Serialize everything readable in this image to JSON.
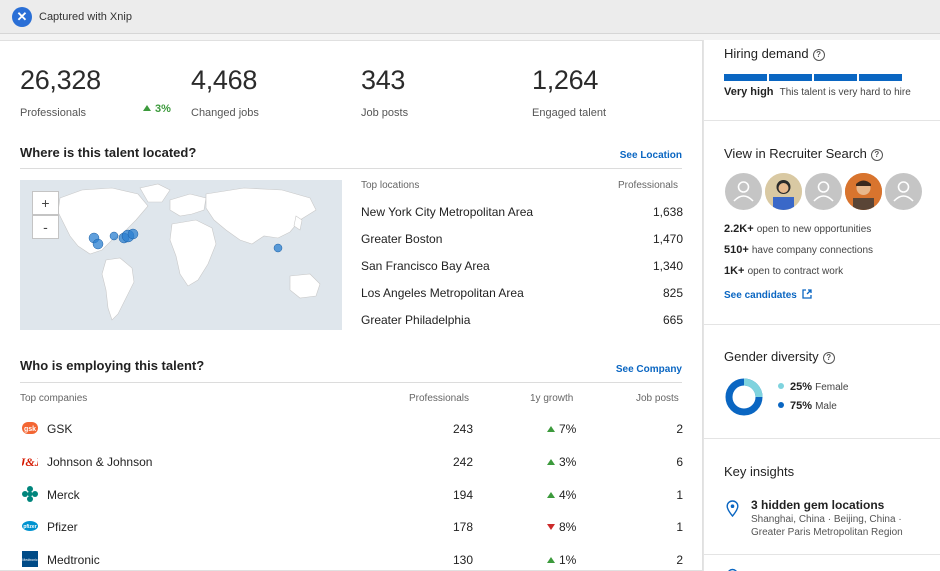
{
  "titlebar": {
    "title": "Captured with Xnip",
    "logo_glyph": "✕"
  },
  "stats": [
    {
      "value": "26,328",
      "label": "Professionals"
    },
    {
      "value": "4,468",
      "label": "Changed jobs"
    },
    {
      "value": "343",
      "label": "Job posts"
    },
    {
      "value": "1,264",
      "label": "Engaged talent"
    }
  ],
  "stats_growth": "3%",
  "location": {
    "title": "Where is this talent located?",
    "link": "See Location",
    "zoom_in": "+",
    "zoom_out": "-",
    "col_name": "Top locations",
    "col_value": "Professionals",
    "rows": [
      {
        "name": "New York City Metropolitan Area",
        "value": "1,638"
      },
      {
        "name": "Greater Boston",
        "value": "1,470"
      },
      {
        "name": "San Francisco Bay Area",
        "value": "1,340"
      },
      {
        "name": "Los Angeles Metropolitan Area",
        "value": "825"
      },
      {
        "name": "Greater Philadelphia",
        "value": "665"
      }
    ]
  },
  "companies": {
    "title": "Who is employing this talent?",
    "link": "See Company",
    "headers": {
      "name": "Top companies",
      "professionals": "Professionals",
      "growth": "1y growth",
      "jobs": "Job posts"
    },
    "rows": [
      {
        "name": "GSK",
        "professionals": "243",
        "growth": "7%",
        "direction": "up",
        "jobs": "2",
        "logo": "gsk-logo-icon",
        "color": "#f36633"
      },
      {
        "name": "Johnson & Johnson",
        "professionals": "242",
        "growth": "3%",
        "direction": "up",
        "jobs": "6",
        "logo": "jnj-logo-icon",
        "color": "#d51900"
      },
      {
        "name": "Merck",
        "professionals": "194",
        "growth": "4%",
        "direction": "up",
        "jobs": "1",
        "logo": "merck-logo-icon",
        "color": "#00857c"
      },
      {
        "name": "Pfizer",
        "professionals": "178",
        "growth": "8%",
        "direction": "down",
        "jobs": "1",
        "logo": "pfizer-logo-icon",
        "color": "#0093d0"
      },
      {
        "name": "Medtronic",
        "professionals": "130",
        "growth": "1%",
        "direction": "up",
        "jobs": "2",
        "logo": "medtronic-logo-icon",
        "color": "#004b87"
      }
    ]
  },
  "hiring_demand": {
    "title": "Hiring demand",
    "level": "Very high",
    "description": "This talent is very hard to hire",
    "segments_filled": 4
  },
  "recruiter_search": {
    "title": "View in Recruiter Search",
    "avatars": [
      "placeholder",
      "photo",
      "placeholder",
      "photo",
      "placeholder"
    ],
    "stats": [
      {
        "value": "2.2K+",
        "text": "open to new opportunities"
      },
      {
        "value": "510+",
        "text": "have company connections"
      },
      {
        "value": "1K+",
        "text": "open to contract work"
      }
    ],
    "link": "See candidates"
  },
  "gender": {
    "title": "Gender diversity",
    "female_pct": "25%",
    "female_label": "Female",
    "male_pct": "75%",
    "male_label": "Male",
    "female_color": "#7fd3de",
    "male_color": "#0a66c2"
  },
  "insights": {
    "title": "Key insights",
    "item_title": "3 hidden gem locations",
    "item_line1": "Shanghai, China · Beijing, China ·",
    "item_line2": "Greater Paris Metropolitan Region"
  },
  "colors": {
    "link": "#0a66c2",
    "up": "#3c9a3c",
    "down": "#cc2a2a"
  }
}
